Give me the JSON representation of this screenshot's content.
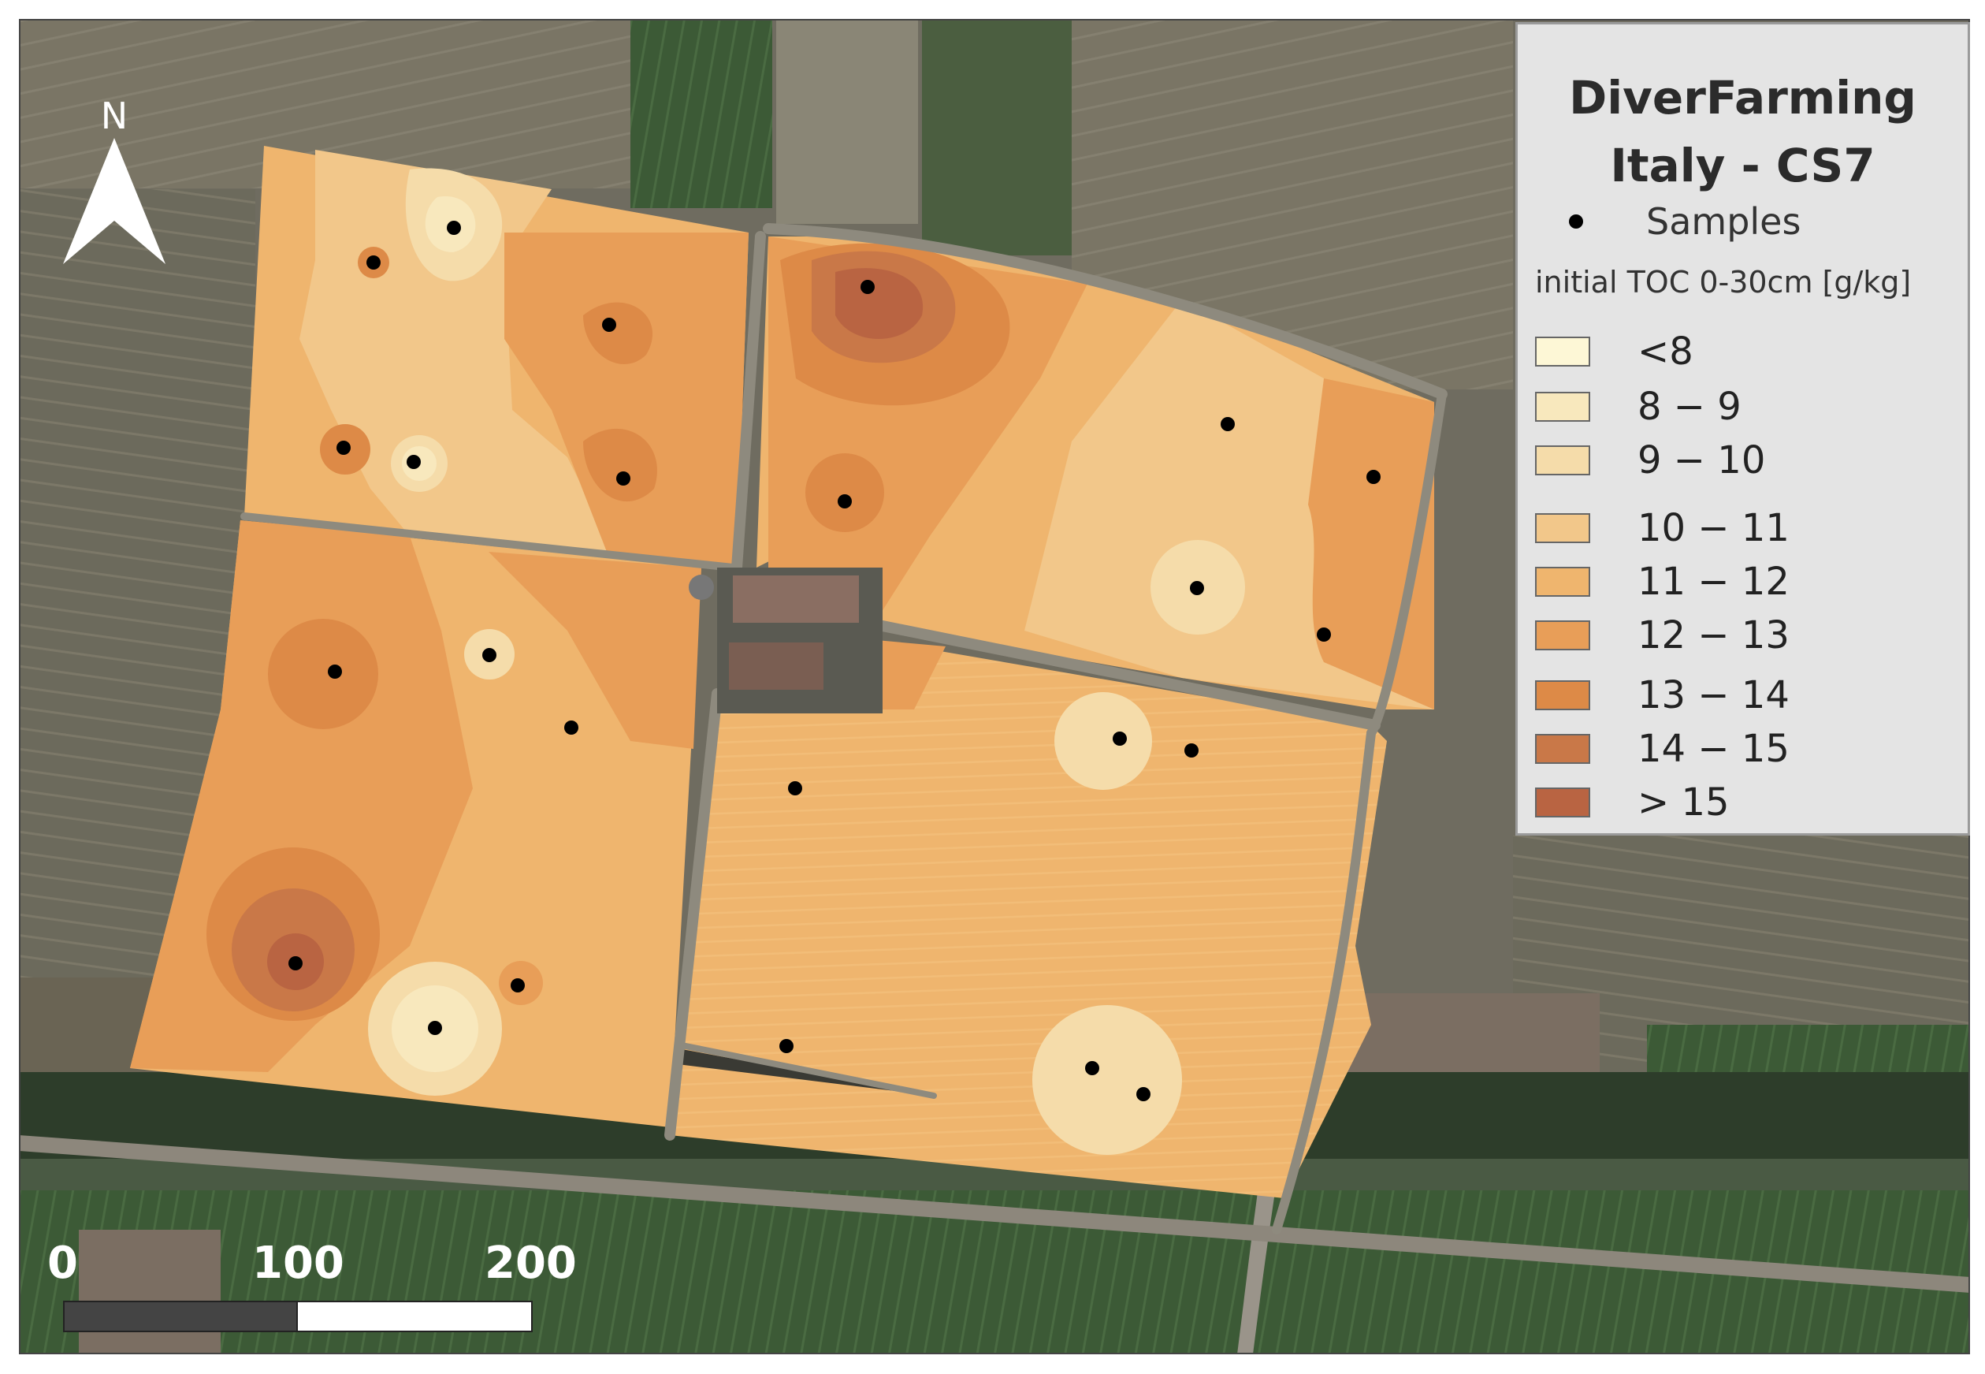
{
  "legend": {
    "title_line1": "DiverFarming",
    "title_line2": "Italy - CS7",
    "samples_label": "Samples",
    "subtitle": "initial TOC 0-30cm [g/kg]",
    "classes": [
      {
        "label": "<8",
        "color": "#fdf7d6"
      },
      {
        "label": "8 − 9",
        "color": "#f8e8bd"
      },
      {
        "label": "9 − 10",
        "color": "#f5dcaa"
      },
      {
        "label": "10 − 11",
        "color": "#f2c78a"
      },
      {
        "label": "11 − 12",
        "color": "#efb56e"
      },
      {
        "label": "12 − 13",
        "color": "#e89e58"
      },
      {
        "label": "13 − 14",
        "color": "#dd8a47"
      },
      {
        "label": "14 − 15",
        "color": "#c97848"
      },
      {
        "label": "> 15",
        "color": "#b96442"
      }
    ]
  },
  "north_label": "N",
  "scale": {
    "label_0": "0",
    "label_1": "100",
    "label_2": "200 m"
  },
  "colors": {
    "background_field": "#6e6a5c",
    "dark_green": "#2f4a2c",
    "road": "#8f8a80"
  }
}
